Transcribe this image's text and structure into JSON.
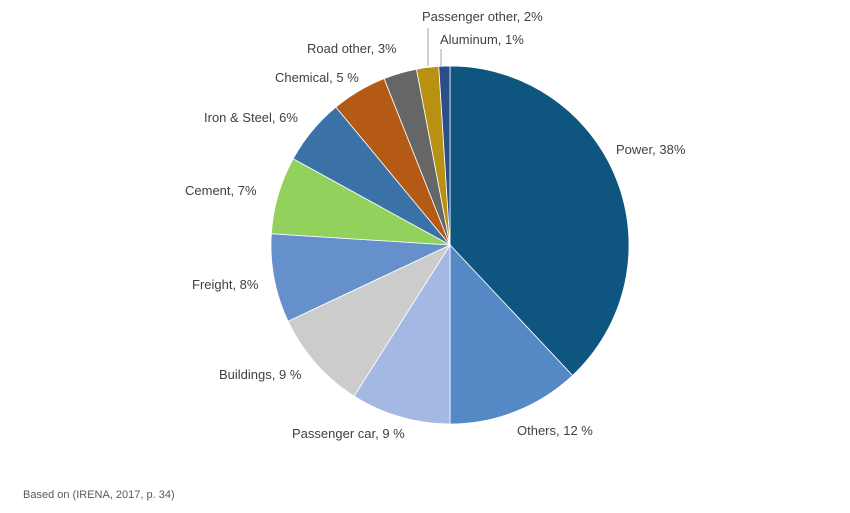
{
  "chart_data": {
    "type": "pie",
    "title": "",
    "start": "12 o'clock",
    "direction": "clockwise",
    "slices": [
      {
        "name": "Power",
        "value": 38,
        "label": "Power, 38%",
        "color": "#0e5580"
      },
      {
        "name": "Others",
        "value": 12,
        "label": "Others, 12 %",
        "color": "#5489c6"
      },
      {
        "name": "Passenger car",
        "value": 9,
        "label": "Passenger car, 9 %",
        "color": "#a3b9e4"
      },
      {
        "name": "Buildings",
        "value": 9,
        "label": "Buildings, 9 %",
        "color": "#cccccc"
      },
      {
        "name": "Freight",
        "value": 8,
        "label": "Freight, 8%",
        "color": "#6690cc"
      },
      {
        "name": "Cement",
        "value": 7,
        "label": "Cement, 7%",
        "color": "#92d15c"
      },
      {
        "name": "Iron & Steel",
        "value": 6,
        "label": "Iron & Steel, 6%",
        "color": "#3a72a7"
      },
      {
        "name": "Chemical",
        "value": 5,
        "label": "Chemical, 5 %",
        "color": "#b55a14"
      },
      {
        "name": "Road other",
        "value": 3,
        "label": "Road other, 3%",
        "color": "#666666"
      },
      {
        "name": "Passenger other",
        "value": 2,
        "label": "Passenger other, 2%",
        "color": "#b89113"
      },
      {
        "name": "Aluminum",
        "value": 1,
        "label": "Aluminum, 1%",
        "color": "#2b4d8a"
      }
    ]
  },
  "source_note": "Based on (IRENA, 2017, p. 34)"
}
